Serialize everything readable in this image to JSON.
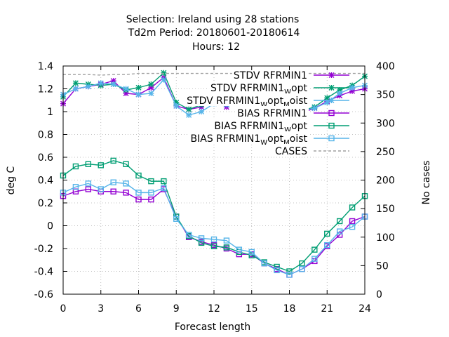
{
  "chart_data": {
    "type": "line",
    "title": "Selection: Ireland using    28 stations",
    "subtitle_lines": [
      "Td2m   Period: 20180601-20180614",
      "Hours:  12"
    ],
    "xlabel": "Forecast length",
    "ylabel": "deg C",
    "y2label": "No cases",
    "xlim": [
      0,
      24
    ],
    "ylim": [
      -0.6,
      1.4
    ],
    "y2lim": [
      0,
      400
    ],
    "x_ticks": [
      0,
      3,
      6,
      9,
      12,
      15,
      18,
      21,
      24
    ],
    "y_ticks": [
      -0.6,
      -0.4,
      -0.2,
      0,
      0.2,
      0.4,
      0.6,
      0.8,
      1,
      1.2,
      1.4
    ],
    "y_tick_labels": [
      "-0.6",
      "-0.4",
      "-0.2",
      "0",
      "0.2",
      "0.4",
      "0.6",
      "0.8",
      "1",
      "1.2",
      "1.4"
    ],
    "y2_ticks": [
      0,
      50,
      100,
      150,
      200,
      250,
      300,
      350,
      400
    ],
    "grid": true,
    "legend_position": "top-right",
    "x": [
      0,
      1,
      2,
      3,
      4,
      5,
      6,
      7,
      8,
      9,
      10,
      11,
      12,
      13,
      14,
      15,
      16,
      17,
      18,
      19,
      20,
      21,
      22,
      23,
      24
    ],
    "series": [
      {
        "name": "STDV RFRMIN1",
        "name_parts": [
          [
            "STDV RFRMIN1",
            ""
          ]
        ],
        "color": "#9400d3",
        "marker": "star",
        "axis": "y1",
        "values": [
          1.07,
          1.2,
          1.22,
          1.24,
          1.27,
          1.16,
          1.15,
          1.21,
          1.3,
          1.05,
          1.02,
          1.04,
          1.1,
          1.04,
          1.13,
          1.15,
          1.12,
          1.06,
          1.02,
          0.99,
          1.03,
          1.09,
          1.14,
          1.18,
          1.2
        ]
      },
      {
        "name": "STDV RFRMIN1_W opt",
        "name_parts": [
          [
            "STDV RFRMIN1",
            ""
          ],
          [
            "W",
            "sub"
          ],
          [
            "opt",
            ""
          ]
        ],
        "color": "#009e73",
        "marker": "star",
        "axis": "y1",
        "values": [
          1.13,
          1.25,
          1.24,
          1.23,
          1.24,
          1.19,
          1.21,
          1.24,
          1.34,
          1.08,
          1.02,
          1.06,
          1.13,
          1.07,
          1.17,
          1.18,
          1.17,
          1.05,
          1.0,
          1.01,
          1.04,
          1.12,
          1.19,
          1.23,
          1.31
        ]
      },
      {
        "name": "STDV RFRMIN1_W opt_M oist",
        "name_parts": [
          [
            "STDV RFRMIN1",
            ""
          ],
          [
            "W",
            "sub"
          ],
          [
            "opt",
            ""
          ],
          [
            "M",
            "sub"
          ],
          [
            "oist",
            ""
          ]
        ],
        "color": "#56b4e9",
        "marker": "star",
        "axis": "y1",
        "values": [
          1.15,
          1.2,
          1.22,
          1.25,
          1.24,
          1.2,
          1.15,
          1.16,
          1.28,
          1.05,
          0.97,
          1.0,
          1.07,
          1.06,
          1.09,
          1.1,
          1.09,
          1.03,
          0.98,
          1.01,
          1.03,
          1.08,
          1.16,
          1.21,
          1.23
        ]
      },
      {
        "name": "BIAS RFRMIN1",
        "name_parts": [
          [
            "BIAS RFRMIN1",
            ""
          ]
        ],
        "color": "#9400d3",
        "marker": "square",
        "axis": "y1",
        "values": [
          0.26,
          0.3,
          0.32,
          0.3,
          0.3,
          0.29,
          0.23,
          0.23,
          0.32,
          0.08,
          -0.1,
          -0.14,
          -0.17,
          -0.2,
          -0.25,
          -0.25,
          -0.33,
          -0.38,
          -0.43,
          -0.38,
          -0.31,
          -0.18,
          -0.08,
          0.04,
          0.08
        ]
      },
      {
        "name": "BIAS RFRMIN1_W opt",
        "name_parts": [
          [
            "BIAS RFRMIN1",
            ""
          ],
          [
            "W",
            "sub"
          ],
          [
            "opt",
            ""
          ]
        ],
        "color": "#009e73",
        "marker": "square",
        "axis": "y1",
        "values": [
          0.44,
          0.52,
          0.54,
          0.53,
          0.57,
          0.54,
          0.44,
          0.39,
          0.39,
          0.08,
          -0.09,
          -0.15,
          -0.18,
          -0.19,
          -0.23,
          -0.26,
          -0.32,
          -0.36,
          -0.4,
          -0.33,
          -0.21,
          -0.07,
          0.04,
          0.16,
          0.26
        ]
      },
      {
        "name": "BIAS RFRMIN1_W opt_M oist",
        "name_parts": [
          [
            "BIAS RFRMIN1",
            ""
          ],
          [
            "W",
            "sub"
          ],
          [
            "opt",
            ""
          ],
          [
            "M",
            "sub"
          ],
          [
            "oist",
            ""
          ]
        ],
        "color": "#56b4e9",
        "marker": "square",
        "axis": "y1",
        "values": [
          0.29,
          0.34,
          0.37,
          0.32,
          0.38,
          0.37,
          0.29,
          0.29,
          0.33,
          0.06,
          -0.08,
          -0.11,
          -0.12,
          -0.13,
          -0.21,
          -0.23,
          -0.33,
          -0.39,
          -0.43,
          -0.38,
          -0.29,
          -0.17,
          -0.05,
          -0.01,
          0.08
        ]
      },
      {
        "name": "CASES",
        "name_parts": [
          [
            "CASES",
            ""
          ]
        ],
        "color": "#a0a0a0",
        "marker": "none",
        "dashed": true,
        "axis": "y2",
        "values": [
          385,
          385,
          385,
          384,
          385,
          385,
          387,
          387,
          387,
          387,
          387,
          387,
          387,
          387,
          387,
          387,
          387,
          387,
          387,
          387,
          387,
          387,
          387,
          387,
          387
        ]
      }
    ]
  }
}
